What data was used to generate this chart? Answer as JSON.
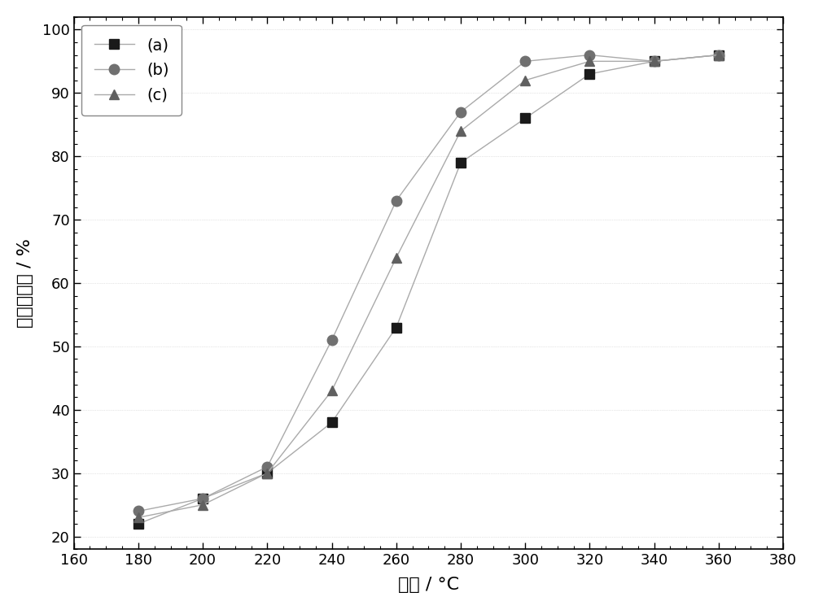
{
  "x": [
    180,
    200,
    220,
    240,
    260,
    280,
    300,
    320,
    340,
    360
  ],
  "series_a": [
    22,
    26,
    30,
    38,
    53,
    79,
    86,
    93,
    95,
    96
  ],
  "series_b": [
    24,
    26,
    31,
    51,
    73,
    87,
    95,
    96,
    95,
    96
  ],
  "series_c": [
    23,
    25,
    30,
    43,
    64,
    84,
    92,
    95,
    95,
    96
  ],
  "marker_color_a": "#1a1a1a",
  "marker_color_b": "#707070",
  "marker_color_c": "#606060",
  "line_color_a": "#aaaaaa",
  "line_color_b": "#aaaaaa",
  "line_color_c": "#aaaaaa",
  "xlabel": "温度 / °C",
  "ylabel": "甲苯转化率 / %",
  "xlim": [
    160,
    380
  ],
  "ylim": [
    18,
    102
  ],
  "xticks": [
    160,
    180,
    200,
    220,
    240,
    260,
    280,
    300,
    320,
    340,
    360,
    380
  ],
  "yticks": [
    20,
    30,
    40,
    50,
    60,
    70,
    80,
    90,
    100
  ],
  "legend_labels": [
    "(a)",
    "(b)",
    "(c)"
  ],
  "marker_size_sq": 8,
  "marker_size_ci": 9,
  "marker_size_tr": 9,
  "linewidth": 1.0,
  "background_color": "#ffffff",
  "font_size_label": 16,
  "font_size_tick": 13,
  "font_size_legend": 14
}
